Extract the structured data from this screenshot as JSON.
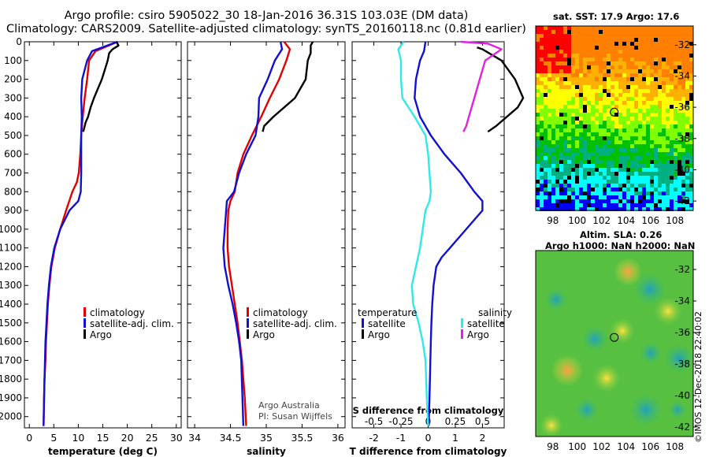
{
  "header": {
    "line1": "Argo profile: csiro 5905022_30 18-Jan-2016 36.31S 103.03E (DM data)",
    "line2": "Climatology: CARS2009. Satellite-adjusted climatology: synTS_20160118.nc (0.81d earlier)"
  },
  "colors": {
    "climatology": "#e00000",
    "satellite": "#1010d0",
    "argo": "#000000",
    "satellite_s": "#30e8e8",
    "argo_s": "#e020e0"
  },
  "depth_axis": {
    "ticks": [
      0,
      100,
      200,
      300,
      400,
      500,
      600,
      700,
      800,
      900,
      1000,
      1100,
      1200,
      1300,
      1400,
      1500,
      1600,
      1700,
      1800,
      1900,
      2000
    ]
  },
  "chart_data": [
    {
      "type": "line",
      "title": "temperature profile",
      "xlabel": "temperature (deg C)",
      "xlim": [
        -1,
        31
      ],
      "ylim": [
        2060,
        0
      ],
      "xticks": [
        0,
        5,
        10,
        15,
        20,
        25,
        30
      ],
      "legend": [
        "climatology",
        "satellite-adj. clim.",
        "Argo"
      ],
      "series": [
        {
          "name": "climatology",
          "color": "#e00000",
          "x": [
            18.0,
            13.5,
            12.2,
            11.8,
            11.3,
            10.9,
            10.6,
            10.4,
            10.1,
            9.7,
            8.8,
            7.5,
            6.3,
            5.2,
            4.5,
            4.1,
            3.8,
            3.6,
            3.4,
            3.3,
            3.1,
            3.0,
            2.9
          ],
          "y": [
            0,
            50,
            100,
            200,
            300,
            400,
            500,
            600,
            700,
            750,
            800,
            900,
            1000,
            1100,
            1200,
            1300,
            1400,
            1500,
            1600,
            1700,
            1800,
            1900,
            2050
          ]
        },
        {
          "name": "satellite-adj. clim.",
          "color": "#1010d0",
          "x": [
            18.0,
            12.8,
            11.8,
            10.8,
            10.6,
            10.7,
            10.6,
            10.6,
            10.6,
            10.5,
            10.0,
            8.2,
            6.3,
            5.1,
            4.4,
            4.0,
            3.7,
            3.5,
            3.3,
            3.2,
            3.1,
            2.9
          ],
          "y": [
            0,
            50,
            100,
            200,
            300,
            400,
            500,
            600,
            700,
            800,
            850,
            900,
            1000,
            1100,
            1200,
            1300,
            1400,
            1500,
            1600,
            1700,
            1800,
            2050
          ]
        },
        {
          "name": "Argo",
          "color": "#000000",
          "x": [
            17.8,
            18.2,
            17.0,
            16.3,
            16.0,
            14.8,
            13.2,
            12.5,
            12.0,
            11.5,
            11.2,
            11.0
          ],
          "y": [
            0,
            20,
            40,
            60,
            100,
            200,
            300,
            350,
            400,
            430,
            460,
            480
          ]
        }
      ]
    },
    {
      "type": "line",
      "title": "salinity profile",
      "xlabel": "salinity",
      "xlim": [
        33.9,
        36.1
      ],
      "ylim": [
        2060,
        0
      ],
      "xticks": [
        34,
        34.5,
        35,
        35.5,
        36
      ],
      "legend": [
        "climatology",
        "satellite-adj. clim.",
        "Argo"
      ],
      "series": [
        {
          "name": "climatology",
          "color": "#e00000",
          "x": [
            35.25,
            35.33,
            35.28,
            35.18,
            35.05,
            34.93,
            34.8,
            34.68,
            34.6,
            34.56,
            34.5,
            34.47,
            34.46,
            34.46,
            34.48,
            34.52,
            34.56,
            34.6,
            34.63,
            34.66,
            34.68,
            34.7,
            34.72
          ],
          "y": [
            0,
            40,
            100,
            200,
            300,
            400,
            500,
            600,
            700,
            800,
            850,
            900,
            1000,
            1100,
            1200,
            1300,
            1400,
            1500,
            1600,
            1700,
            1800,
            1900,
            2050
          ]
        },
        {
          "name": "satellite-adj. clim.",
          "color": "#1010d0",
          "x": [
            35.2,
            35.22,
            35.12,
            35.02,
            34.9,
            34.89,
            34.85,
            34.72,
            34.62,
            34.55,
            34.45,
            34.44,
            34.42,
            34.4,
            34.42,
            34.47,
            34.53,
            34.58,
            34.62,
            34.65,
            34.68
          ],
          "y": [
            0,
            40,
            100,
            200,
            300,
            400,
            500,
            600,
            700,
            800,
            850,
            900,
            1000,
            1100,
            1200,
            1300,
            1400,
            1500,
            1600,
            1700,
            2050
          ]
        },
        {
          "name": "Argo",
          "color": "#000000",
          "x": [
            35.65,
            35.62,
            35.62,
            35.58,
            35.55,
            35.4,
            35.25,
            35.1,
            34.97,
            34.95
          ],
          "y": [
            0,
            20,
            60,
            100,
            200,
            300,
            350,
            400,
            450,
            480
          ]
        }
      ]
    },
    {
      "type": "line",
      "title": "difference from climatology",
      "xlabel": "T difference from climatology",
      "xlabel_top": "S difference from climatology",
      "xlim": [
        -2.8,
        2.8
      ],
      "ylim": [
        2060,
        0
      ],
      "xticks": [
        -2,
        -1,
        0,
        1,
        2
      ],
      "xticks_s": [
        -0.5,
        -0.25,
        0,
        0.25,
        0.5
      ],
      "xticks_s_labels": [
        "-0.5",
        "-0.25",
        "0",
        "0.25",
        "0.5"
      ],
      "legend_left_title": "temperature",
      "legend_right_title": "salinity",
      "legend": [
        "satellite",
        "Argo",
        "satellite",
        "Argo"
      ],
      "series": [
        {
          "name": "temperature satellite",
          "color": "#1010d0",
          "x": [
            -0.1,
            -0.15,
            -0.3,
            -0.45,
            -0.5,
            -0.3,
            0.1,
            0.6,
            1.2,
            1.7,
            2.0,
            2.0,
            1.4,
            0.8,
            0.5,
            0.3,
            0.2,
            0.15,
            0.12,
            0.1,
            0.08,
            0.05,
            0.02
          ],
          "y": [
            0,
            50,
            100,
            200,
            300,
            400,
            500,
            600,
            700,
            800,
            850,
            900,
            1000,
            1100,
            1150,
            1200,
            1300,
            1400,
            1500,
            1600,
            1700,
            1900,
            2050
          ]
        },
        {
          "name": "salinity satellite",
          "color": "#30e8e8",
          "x": [
            -0.9,
            -1.1,
            -1.0,
            -1.0,
            -0.95,
            -0.5,
            -0.1,
            0.0,
            0.05,
            0.1,
            0.05,
            -0.1,
            -0.2,
            -0.3,
            -0.45,
            -0.6,
            -0.55,
            -0.35,
            -0.2,
            -0.1,
            -0.05,
            0.0
          ],
          "y": [
            0,
            40,
            100,
            200,
            300,
            400,
            500,
            600,
            700,
            800,
            850,
            900,
            1000,
            1100,
            1200,
            1300,
            1400,
            1500,
            1600,
            1700,
            1900,
            2050
          ]
        },
        {
          "name": "temperature Argo",
          "color": "#000000",
          "x": [
            1.8,
            2.0,
            2.7,
            3.2,
            3.5,
            3.3,
            2.5,
            2.2
          ],
          "y": [
            30,
            40,
            100,
            200,
            300,
            350,
            450,
            480
          ]
        },
        {
          "name": "salinity Argo",
          "color": "#e020e0",
          "x": [
            1.2,
            2.2,
            2.7,
            2.1,
            1.9,
            1.7,
            1.5,
            1.4,
            1.3
          ],
          "y": [
            0,
            10,
            40,
            100,
            200,
            300,
            400,
            450,
            480
          ]
        }
      ]
    }
  ],
  "notes": {
    "line1": "Argo Australia",
    "line2": "PI: Susan Wijffels"
  },
  "sst_map": {
    "title": "sat. SST: 17.9 Argo: 17.6",
    "yticks": [
      -32,
      -34,
      -36,
      -38,
      -40,
      -42
    ],
    "xticks": [
      98,
      100,
      102,
      104,
      106,
      108
    ],
    "float_lon": 103.03,
    "float_lat": -36.31
  },
  "sla_map": {
    "title1": "Altim. SLA: 0.26",
    "title2": "Argo h1000: NaN h2000: NaN",
    "yticks": [
      -32,
      -34,
      -36,
      -38,
      -40,
      -42
    ],
    "xticks": [
      98,
      100,
      102,
      104,
      106,
      108
    ],
    "float_lon": 103.03,
    "float_lat": -36.31
  },
  "stamp": "©IMOS 12-Dec-2018 22:40:02"
}
